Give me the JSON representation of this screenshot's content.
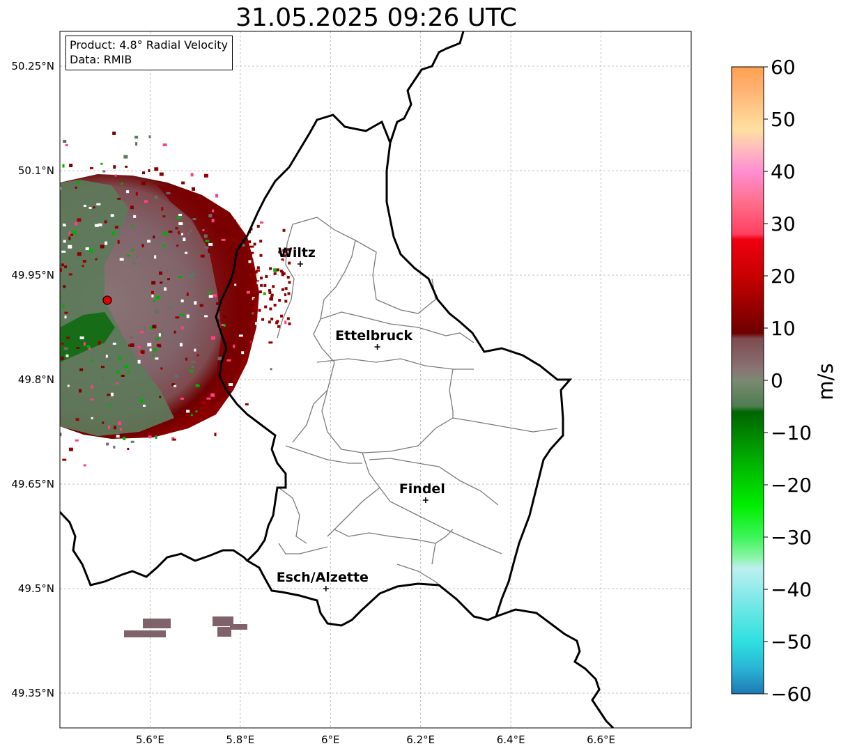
{
  "title": "31.05.2025 09:26 UTC",
  "info": {
    "product": "Product: 4.8° Radial Velocity",
    "data_source": "Data: RMIB"
  },
  "map": {
    "extent": {
      "lon_min": 5.4,
      "lon_max": 6.8,
      "lat_min": 49.3,
      "lat_max": 50.3
    },
    "lat_ticks": [
      {
        "value": 50.25,
        "label": "50.25°N"
      },
      {
        "value": 50.1,
        "label": "50.1°N"
      },
      {
        "value": 49.95,
        "label": "49.95°N"
      },
      {
        "value": 49.8,
        "label": "49.8°N"
      },
      {
        "value": 49.65,
        "label": "49.65°N"
      },
      {
        "value": 49.5,
        "label": "49.5°N"
      },
      {
        "value": 49.35,
        "label": "49.35°N"
      }
    ],
    "lon_ticks": [
      {
        "value": 5.6,
        "label": "5.6°E"
      },
      {
        "value": 5.8,
        "label": "5.8°E"
      },
      {
        "value": 6.0,
        "label": "6°E"
      },
      {
        "value": 6.2,
        "label": "6.2°E"
      },
      {
        "value": 6.4,
        "label": "6.4°E"
      },
      {
        "value": 6.6,
        "label": "6.6°E"
      }
    ],
    "cities": [
      {
        "name": "Wiltz",
        "lon": 5.933,
        "lat": 49.966
      },
      {
        "name": "Ettelbruck",
        "lon": 6.104,
        "lat": 49.847
      },
      {
        "name": "Findel",
        "lon": 6.211,
        "lat": 49.627
      },
      {
        "name": "Esch/Alzette",
        "lon": 5.99,
        "lat": 49.5
      }
    ],
    "radar_site": {
      "lon": 5.505,
      "lat": 49.914
    },
    "grid": true
  },
  "colorbar": {
    "unit": "m/s",
    "min": -60,
    "max": 60,
    "ticks": [
      {
        "value": 60,
        "label": "60"
      },
      {
        "value": 50,
        "label": "50"
      },
      {
        "value": 40,
        "label": "40"
      },
      {
        "value": 30,
        "label": "30"
      },
      {
        "value": 20,
        "label": "20"
      },
      {
        "value": 10,
        "label": "10"
      },
      {
        "value": 0,
        "label": "0"
      },
      {
        "value": -10,
        "label": "−10"
      },
      {
        "value": -20,
        "label": "−20"
      },
      {
        "value": -30,
        "label": "−30"
      },
      {
        "value": -40,
        "label": "−40"
      },
      {
        "value": -50,
        "label": "−50"
      },
      {
        "value": -60,
        "label": "−60"
      }
    ],
    "color_stops": [
      {
        "value": -60,
        "color": "#1f78b4"
      },
      {
        "value": -55,
        "color": "#29b6d6"
      },
      {
        "value": -50,
        "color": "#2ee0e0"
      },
      {
        "value": -42,
        "color": "#7ee8e8"
      },
      {
        "value": -36,
        "color": "#bdf0f0"
      },
      {
        "value": -34,
        "color": "#8cf5a8"
      },
      {
        "value": -30,
        "color": "#3cf55a"
      },
      {
        "value": -24,
        "color": "#00ee00"
      },
      {
        "value": -16,
        "color": "#00b400"
      },
      {
        "value": -6,
        "color": "#006400"
      },
      {
        "value": -5,
        "color": "#4e7d50"
      },
      {
        "value": 0,
        "color": "#7a8a72"
      },
      {
        "value": 2,
        "color": "#8a7474"
      },
      {
        "value": 8,
        "color": "#7e4b50"
      },
      {
        "value": 9,
        "color": "#6e0000"
      },
      {
        "value": 20,
        "color": "#c80000"
      },
      {
        "value": 27,
        "color": "#f00010"
      },
      {
        "value": 28,
        "color": "#ff4060"
      },
      {
        "value": 34,
        "color": "#ff6e8a"
      },
      {
        "value": 40,
        "color": "#ff8ed2"
      },
      {
        "value": 44,
        "color": "#ffb8c0"
      },
      {
        "value": 48,
        "color": "#ffe0a0"
      },
      {
        "value": 56,
        "color": "#ffb070"
      },
      {
        "value": 60,
        "color": "#ffa050"
      }
    ]
  }
}
